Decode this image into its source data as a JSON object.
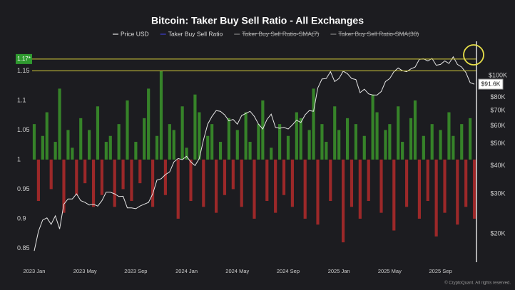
{
  "chart_data": {
    "type": "bar",
    "title": "Bitcoin: Taker Buy Sell Ratio - All Exchanges",
    "categories": [
      "2023 Jan",
      null,
      null,
      null,
      null,
      null,
      null,
      null,
      null,
      null,
      null,
      null,
      "2023 May",
      null,
      null,
      null,
      null,
      null,
      null,
      null,
      null,
      null,
      null,
      null,
      "2023 Sep",
      null,
      null,
      null,
      null,
      null,
      null,
      null,
      null,
      null,
      null,
      null,
      "2024 Jan",
      null,
      null,
      null,
      null,
      null,
      null,
      null,
      null,
      null,
      null,
      null,
      "2024 May",
      null,
      null,
      null,
      null,
      null,
      null,
      null,
      null,
      null,
      null,
      null,
      "2024 Sep",
      null,
      null,
      null,
      null,
      null,
      null,
      null,
      null,
      null,
      null,
      null,
      "2025 Jan",
      null,
      null,
      null,
      null,
      null,
      null,
      null,
      null,
      null,
      null,
      null,
      "2025 May",
      null,
      null,
      null,
      null,
      null,
      null,
      null,
      null,
      null,
      null,
      null,
      "2025 Sep",
      null,
      null,
      null,
      null,
      null,
      null,
      null,
      null
    ],
    "series": [
      {
        "name": "Price USD",
        "color": "#e6e6e6",
        "axis": "y2",
        "values": [
          16800,
          20500,
          23000,
          23500,
          22000,
          24000,
          21000,
          27000,
          28500,
          28500,
          30000,
          28000,
          27500,
          26800,
          27000,
          26500,
          28000,
          30500,
          30500,
          30000,
          29200,
          29300,
          26000,
          26000,
          25800,
          26500,
          27000,
          27500,
          30000,
          34500,
          35000,
          36500,
          37500,
          41500,
          43000,
          42500,
          44000,
          41500,
          40000,
          43000,
          52000,
          61000,
          66000,
          70000,
          69500,
          67000,
          63000,
          64000,
          61000,
          66500,
          68000,
          69500,
          66000,
          61000,
          58000,
          64000,
          67500,
          59000,
          58500,
          59000,
          58000,
          60500,
          63500,
          62000,
          67000,
          70000,
          69500,
          88000,
          96500,
          97000,
          104000,
          94000,
          97000,
          104500,
          102000,
          97000,
          96000,
          84000,
          87000,
          83000,
          82000,
          82000,
          85000,
          94000,
          97000,
          104000,
          108000,
          105000,
          104000,
          107000,
          109000,
          118000,
          118500,
          116000,
          119000,
          111000,
          112000,
          116000,
          113000,
          121000,
          112000,
          109000,
          103000,
          93000,
          91600
        ]
      },
      {
        "name": "Taker Buy Sell Ratio",
        "color": "#3d3dd0",
        "up_color": "#3a8f2a",
        "down_color": "#ab2a2a",
        "values": [
          1.06,
          0.93,
          1.04,
          1.08,
          0.95,
          1.03,
          1.12,
          0.91,
          1.05,
          1.02,
          0.94,
          1.07,
          0.96,
          1.05,
          0.92,
          1.09,
          0.94,
          1.03,
          1.04,
          0.92,
          1.06,
          0.95,
          1.1,
          0.93,
          1.03,
          0.96,
          1.07,
          1.12,
          0.92,
          1.04,
          1.15,
          0.94,
          1.06,
          1.05,
          0.9,
          1.09,
          1.02,
          0.93,
          1.11,
          1.08,
          0.92,
          1.04,
          1.06,
          0.91,
          1.03,
          0.94,
          1.07,
          0.95,
          1.05,
          0.92,
          1.08,
          1.03,
          0.9,
          1.06,
          1.1,
          0.93,
          1.02,
          0.91,
          1.06,
          0.94,
          1.04,
          0.92,
          1.08,
          1.07,
          0.9,
          1.05,
          1.12,
          0.89,
          1.06,
          1.03,
          0.93,
          1.09,
          1.05,
          0.86,
          1.07,
          0.92,
          1.06,
          0.9,
          1.04,
          0.93,
          1.11,
          1.08,
          0.91,
          1.05,
          1.06,
          0.88,
          1.09,
          1.03,
          0.92,
          1.07,
          1.1,
          0.9,
          1.04,
          0.93,
          1.06,
          0.87,
          1.05,
          0.91,
          1.08,
          1.04,
          0.89,
          1.06,
          0.92,
          1.07,
          0.9
        ]
      }
    ],
    "hidden_legend": [
      "Taker Buy Sell Ratio-SMA(7)",
      "Taker Buy Sell Ratio-SMA(30)"
    ],
    "ylim": [
      0.83,
      1.2
    ],
    "yticks": [
      0.85,
      0.9,
      0.95,
      1,
      1.05,
      1.1,
      1.15
    ],
    "y2lim": [
      15300,
      141600
    ],
    "y2_log": true,
    "y2ticks": [
      {
        "value": 20000,
        "label": "$20K"
      },
      {
        "value": 30000,
        "label": "$30K"
      },
      {
        "value": 40000,
        "label": "$40K"
      },
      {
        "value": 50000,
        "label": "$50K"
      },
      {
        "value": 60000,
        "label": "$60K"
      },
      {
        "value": 70000,
        "label": "$70K"
      },
      {
        "value": 80000,
        "label": "$80K"
      },
      {
        "value": 100000,
        "label": "$100K"
      }
    ],
    "reference_lines": [
      {
        "value": 1.17,
        "label": "1.17*",
        "color": "#d9cf3a"
      },
      {
        "value": 1.15,
        "color": "#d9cf3a"
      }
    ],
    "last_price": {
      "value": 91600,
      "label": "$91.6K"
    },
    "grid": false,
    "watermark": "© CryptoQuant. All rights reserved."
  }
}
